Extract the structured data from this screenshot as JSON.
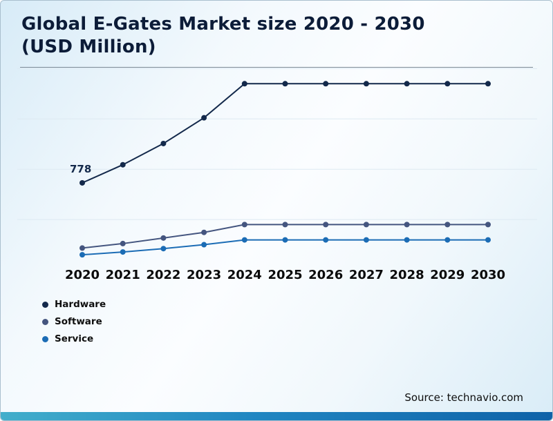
{
  "page": {
    "title": "Global E-Gates Market size 2020 - 2030 (USD Million)",
    "source": "Source: technavio.com"
  },
  "legend": {
    "items": [
      {
        "label": "Hardware",
        "color": "#13294b"
      },
      {
        "label": "Software",
        "color": "#44557f"
      },
      {
        "label": "Service",
        "color": "#1b6cb5"
      }
    ]
  },
  "chart_data": {
    "type": "line",
    "title": "Global E-Gates Market size 2020 - 2030 (USD Million)",
    "x": [
      2020,
      2021,
      2022,
      2023,
      2024,
      2025,
      2026,
      2027,
      2028,
      2029,
      2030
    ],
    "series": [
      {
        "name": "Hardware",
        "color": "#13294b",
        "values": [
          778,
          940,
          1130,
          1360,
          1665,
          1665,
          1665,
          1665,
          1665,
          1665,
          1665
        ],
        "point_label": {
          "x": 2020,
          "text": "778"
        }
      },
      {
        "name": "Software",
        "color": "#44557f",
        "values": [
          195,
          235,
          285,
          335,
          405,
          405,
          405,
          405,
          405,
          405,
          405
        ]
      },
      {
        "name": "Service",
        "color": "#1b6cb5",
        "values": [
          135,
          160,
          190,
          225,
          268,
          268,
          268,
          268,
          268,
          268,
          268
        ]
      }
    ],
    "xlabel": "",
    "ylabel": "",
    "ylim": [
      0,
      1800
    ],
    "grid": true,
    "legend_position": "bottom-left",
    "source": "Source: technavio.com"
  }
}
